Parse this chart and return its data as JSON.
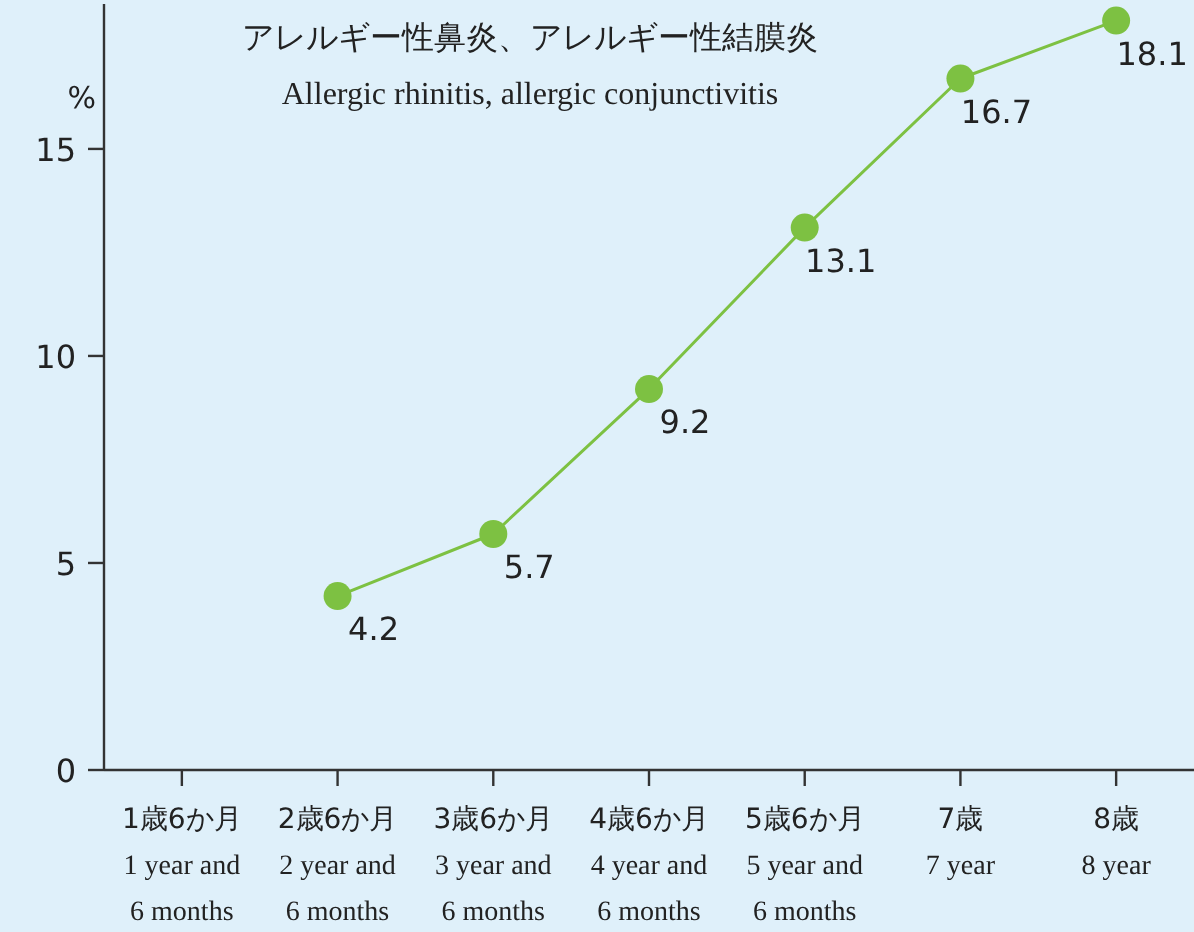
{
  "chart_data": {
    "type": "line",
    "title": "アレルギー性鼻炎、アレルギー性結膜炎",
    "subtitle": "Allergic rhinitis, allergic conjunctivitis",
    "ylabel": "%",
    "categories": [
      "1歳6か月\n1 year and\n6 months",
      "2歳6か月\n2 year and\n6 months",
      "3歳6か月\n3 year and\n6 months",
      "4歳6か月\n4 year and\n6 months",
      "5歳6か月\n5 year and\n6 months",
      "7歳\n7 year",
      "8歳\n8 year"
    ],
    "series": [
      {
        "color": "#7dc142",
        "values": [
          null,
          4.2,
          5.7,
          9.2,
          13.1,
          16.7,
          18.1
        ]
      }
    ],
    "ylim": [
      0,
      18.5
    ],
    "yticks": [
      0,
      5,
      10,
      15
    ],
    "marker": "circle",
    "data_labels": true,
    "grid": false
  }
}
